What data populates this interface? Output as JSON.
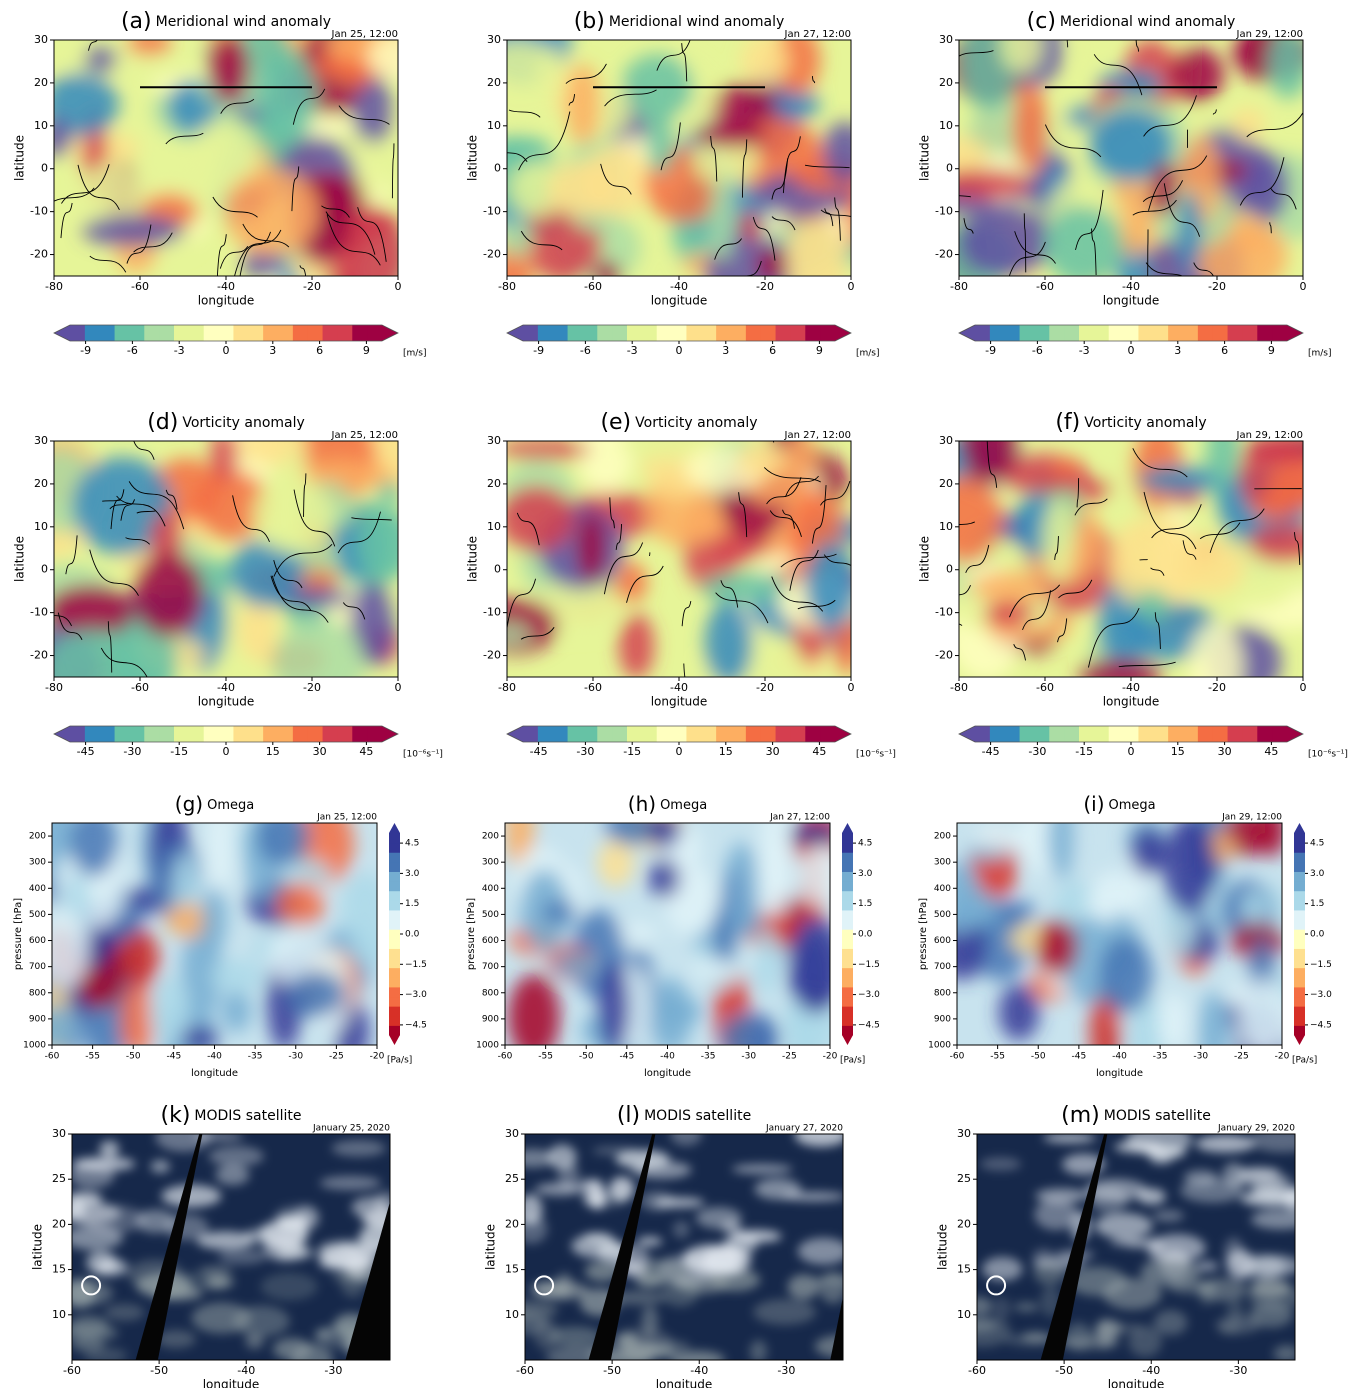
{
  "chart_data": [
    {
      "type": "heatmap",
      "label": "(a)",
      "title": "Meridional wind anomaly",
      "date": "Jan 25, 12:00",
      "xlabel": "longitude",
      "ylabel": "latitude",
      "xlim": [
        -80,
        0
      ],
      "xticks": [
        -80,
        -60,
        -40,
        -20,
        0
      ],
      "ylim": [
        -25,
        30
      ],
      "yticks": [
        -20,
        -10,
        0,
        10,
        20,
        30
      ],
      "colorbar": {
        "lim": [
          -10,
          10
        ],
        "ticks": [
          -9,
          -6,
          -3,
          0,
          3,
          6,
          9
        ],
        "unit": "[m/s]"
      }
    },
    {
      "type": "heatmap",
      "label": "(b)",
      "title": "Meridional wind anomaly",
      "date": "Jan 27, 12:00",
      "xlabel": "longitude",
      "ylabel": "latitude",
      "xlim": [
        -80,
        0
      ],
      "xticks": [
        -80,
        -60,
        -40,
        -20,
        0
      ],
      "ylim": [
        -25,
        30
      ],
      "yticks": [
        -20,
        -10,
        0,
        10,
        20,
        30
      ],
      "colorbar": {
        "lim": [
          -10,
          10
        ],
        "ticks": [
          -9,
          -6,
          -3,
          0,
          3,
          6,
          9
        ],
        "unit": "[m/s]"
      }
    },
    {
      "type": "heatmap",
      "label": "(c)",
      "title": "Meridional wind anomaly",
      "date": "Jan 29, 12:00",
      "xlabel": "longitude",
      "ylabel": "latitude",
      "xlim": [
        -80,
        0
      ],
      "xticks": [
        -80,
        -60,
        -40,
        -20,
        0
      ],
      "ylim": [
        -25,
        30
      ],
      "yticks": [
        -20,
        -10,
        0,
        10,
        20,
        30
      ],
      "colorbar": {
        "lim": [
          -10,
          10
        ],
        "ticks": [
          -9,
          -6,
          -3,
          0,
          3,
          6,
          9
        ],
        "unit": "[m/s]"
      }
    },
    {
      "type": "heatmap",
      "label": "(d)",
      "title": "Vorticity anomaly",
      "date": "Jan 25, 12:00",
      "xlabel": "longitude",
      "ylabel": "latitude",
      "xlim": [
        -80,
        0
      ],
      "xticks": [
        -80,
        -60,
        -40,
        -20,
        0
      ],
      "ylim": [
        -25,
        30
      ],
      "yticks": [
        -20,
        -10,
        0,
        10,
        20,
        30
      ],
      "colorbar": {
        "lim": [
          -50,
          50
        ],
        "ticks": [
          -45,
          -30,
          -15,
          0,
          15,
          30,
          45
        ],
        "unit": "[10⁻⁶s⁻¹]"
      }
    },
    {
      "type": "heatmap",
      "label": "(e)",
      "title": "Vorticity anomaly",
      "date": "Jan 27, 12:00",
      "xlabel": "longitude",
      "ylabel": "latitude",
      "xlim": [
        -80,
        0
      ],
      "xticks": [
        -80,
        -60,
        -40,
        -20,
        0
      ],
      "ylim": [
        -25,
        30
      ],
      "yticks": [
        -20,
        -10,
        0,
        10,
        20,
        30
      ],
      "colorbar": {
        "lim": [
          -50,
          50
        ],
        "ticks": [
          -45,
          -30,
          -15,
          0,
          15,
          30,
          45
        ],
        "unit": "[10⁻⁶s⁻¹]"
      }
    },
    {
      "type": "heatmap",
      "label": "(f)",
      "title": "Vorticity anomaly",
      "date": "Jan 29, 12:00",
      "xlabel": "longitude",
      "ylabel": "latitude",
      "xlim": [
        -80,
        0
      ],
      "xticks": [
        -80,
        -60,
        -40,
        -20,
        0
      ],
      "ylim": [
        -25,
        30
      ],
      "yticks": [
        -20,
        -10,
        0,
        10,
        20,
        30
      ],
      "colorbar": {
        "lim": [
          -50,
          50
        ],
        "ticks": [
          -45,
          -30,
          -15,
          0,
          15,
          30,
          45
        ],
        "unit": "[10⁻⁶s⁻¹]"
      }
    },
    {
      "type": "contour",
      "label": "(g)",
      "title": "Omega",
      "date": "Jan 25, 12:00",
      "xlabel": "longitude",
      "ylabel": "pressure [hPa]",
      "xlim": [
        -60,
        -20
      ],
      "xticks": [
        -60,
        -55,
        -50,
        -45,
        -40,
        -35,
        -30,
        -25,
        -20
      ],
      "ylim": [
        1000,
        150
      ],
      "yticks": [
        200,
        300,
        400,
        500,
        600,
        700,
        800,
        900,
        1000
      ],
      "colorbar": {
        "lim": [
          -5,
          5
        ],
        "ticks": [
          {
            "value": 4.5,
            "label": "4.5"
          },
          {
            "value": 3,
            "label": "3.0"
          },
          {
            "value": 1.5,
            "label": "1.5"
          },
          {
            "value": 0,
            "label": "0.0"
          },
          {
            "value": -1.5,
            "label": "−1.5"
          },
          {
            "value": -3,
            "label": "−3.0"
          },
          {
            "value": -4.5,
            "label": "−4.5"
          }
        ],
        "unit": "[Pa/s]"
      }
    },
    {
      "type": "contour",
      "label": "(h)",
      "title": "Omega",
      "date": "Jan 27, 12:00",
      "xlabel": "longitude",
      "ylabel": "pressure [hPa]",
      "xlim": [
        -60,
        -20
      ],
      "xticks": [
        -60,
        -55,
        -50,
        -45,
        -40,
        -35,
        -30,
        -25,
        -20
      ],
      "ylim": [
        1000,
        150
      ],
      "yticks": [
        200,
        300,
        400,
        500,
        600,
        700,
        800,
        900,
        1000
      ],
      "colorbar": {
        "lim": [
          -5,
          5
        ],
        "ticks": [
          {
            "value": 4.5,
            "label": "4.5"
          },
          {
            "value": 3,
            "label": "3.0"
          },
          {
            "value": 1.5,
            "label": "1.5"
          },
          {
            "value": 0,
            "label": "0.0"
          },
          {
            "value": -1.5,
            "label": "−1.5"
          },
          {
            "value": -3,
            "label": "−3.0"
          },
          {
            "value": -4.5,
            "label": "−4.5"
          }
        ],
        "unit": "[Pa/s]"
      }
    },
    {
      "type": "contour",
      "label": "(i)",
      "title": "Omega",
      "date": "Jan 29, 12:00",
      "xlabel": "longitude",
      "ylabel": "pressure [hPa]",
      "xlim": [
        -60,
        -20
      ],
      "xticks": [
        -60,
        -55,
        -50,
        -45,
        -40,
        -35,
        -30,
        -25,
        -20
      ],
      "ylim": [
        1000,
        150
      ],
      "yticks": [
        200,
        300,
        400,
        500,
        600,
        700,
        800,
        900,
        1000
      ],
      "colorbar": {
        "lim": [
          -5,
          5
        ],
        "ticks": [
          {
            "value": 4.5,
            "label": "4.5"
          },
          {
            "value": 3,
            "label": "3.0"
          },
          {
            "value": 1.5,
            "label": "1.5"
          },
          {
            "value": 0,
            "label": "0.0"
          },
          {
            "value": -1.5,
            "label": "−1.5"
          },
          {
            "value": -3,
            "label": "−3.0"
          },
          {
            "value": -4.5,
            "label": "−4.5"
          }
        ],
        "unit": "[Pa/s]"
      }
    },
    {
      "type": "satellite",
      "label": "(k)",
      "title": "MODIS satellite",
      "date": "January 25, 2020",
      "xlabel": "longitude",
      "ylabel": "latitude",
      "xlim": [
        -60,
        -23.5
      ],
      "xticks": [
        -60,
        -50,
        -40,
        -30
      ],
      "ylim": [
        5,
        30
      ],
      "yticks": [
        10,
        15,
        20,
        25,
        30
      ]
    },
    {
      "type": "satellite",
      "label": "(l)",
      "title": "MODIS satellite",
      "date": "January 27, 2020",
      "xlabel": "longitude",
      "ylabel": "latitude",
      "xlim": [
        -60,
        -23.5
      ],
      "xticks": [
        -60,
        -50,
        -40,
        -30
      ],
      "ylim": [
        5,
        30
      ],
      "yticks": [
        10,
        15,
        20,
        25,
        30
      ]
    },
    {
      "type": "satellite",
      "label": "(m)",
      "title": "MODIS satellite",
      "date": "January 29, 2020",
      "xlabel": "longitude",
      "ylabel": "latitude",
      "xlim": [
        -60,
        -23.5
      ],
      "xticks": [
        -60,
        -50,
        -40,
        -30
      ],
      "ylim": [
        5,
        30
      ],
      "yticks": [
        10,
        15,
        20,
        25,
        30
      ]
    }
  ]
}
